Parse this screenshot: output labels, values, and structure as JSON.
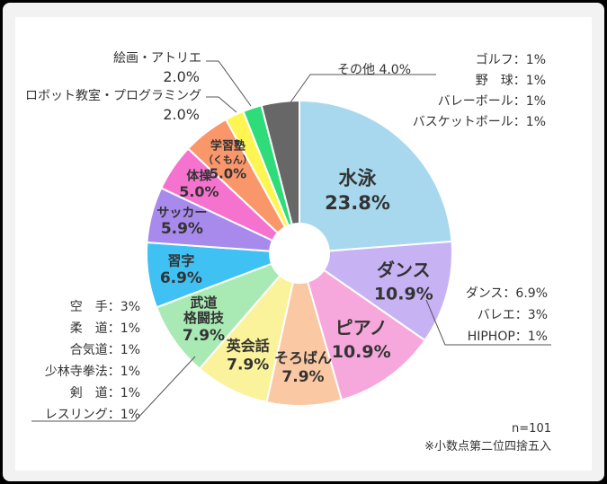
{
  "chart_data": {
    "type": "pie",
    "slices": [
      {
        "name": "水泳",
        "value": 23.8,
        "label": "水泳",
        "pct": "23.8%",
        "color": "#a8d8ee"
      },
      {
        "name": "ダンス",
        "value": 10.9,
        "label": "ダンス",
        "pct": "10.9%",
        "color": "#c7b2f4"
      },
      {
        "name": "ピアノ",
        "value": 10.9,
        "label": "ピアノ",
        "pct": "10.9%",
        "color": "#f6a8dc"
      },
      {
        "name": "そろばん",
        "value": 7.9,
        "label": "そろばん",
        "pct": "7.9%",
        "color": "#fbc8a4"
      },
      {
        "name": "英会話",
        "value": 7.9,
        "label": "英会話",
        "pct": "7.9%",
        "color": "#fbf29c"
      },
      {
        "name": "武道格闘技",
        "value": 7.9,
        "label": "武道\n格闘技",
        "pct": "7.9%",
        "color": "#a9eab4"
      },
      {
        "name": "習字",
        "value": 6.9,
        "label": "習字",
        "pct": "6.9%",
        "color": "#3fc1f4"
      },
      {
        "name": "サッカー",
        "value": 5.9,
        "label": "サッカー",
        "pct": "5.9%",
        "color": "#a88aed"
      },
      {
        "name": "体操",
        "value": 5.0,
        "label": "体操",
        "pct": "5.0%",
        "color": "#f573cf"
      },
      {
        "name": "学習塾（くもん）",
        "value": 5.0,
        "label": "学習塾\n（くもん）",
        "pct": "5.0%",
        "color": "#f9976b"
      },
      {
        "name": "ロボット教室・プログラミング",
        "value": 2.0,
        "label": "",
        "pct": "",
        "color": "#fef553"
      },
      {
        "name": "絵画・アトリエ",
        "value": 2.0,
        "label": "",
        "pct": "",
        "color": "#2edc7a"
      },
      {
        "name": "その他",
        "value": 4.0,
        "label": "",
        "pct": "",
        "color": "#676767"
      }
    ],
    "callouts": {
      "kaiga": {
        "name": "絵画・アトリエ",
        "pct": "2.0%"
      },
      "robot": {
        "name": "ロボット教室・プログラミング",
        "pct": "2.0%"
      },
      "sonota": {
        "text": "その他 4.0%"
      }
    },
    "breakdowns": {
      "sonota": [
        "ゴルフ：1%",
        "野　球：1%",
        "バレーボール：1%",
        "バスケットボール：1%"
      ],
      "dance": [
        "ダンス：6.9%",
        "バレエ：3%",
        "HIPHOP：1%"
      ],
      "budo": [
        "空　手：3%",
        "柔　道：1%",
        "合気道：1%",
        "少林寺拳法：1%",
        "剣　道：1%",
        "レスリング：1%"
      ]
    },
    "notes": {
      "n": "n=101",
      "rounding": "※小数点第二位四捨五入"
    }
  }
}
